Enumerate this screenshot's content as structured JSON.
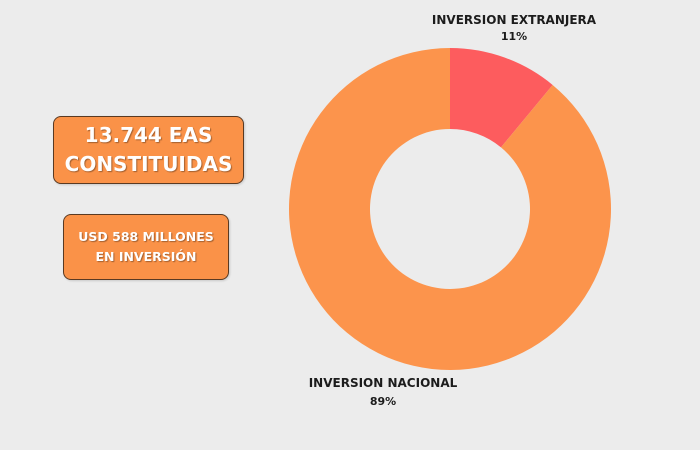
{
  "stats": {
    "companies_line1": "13.744 EAS",
    "companies_line2": "CONSTITUIDAS",
    "investment_line1": "USD 588 MILLONES",
    "investment_line2": "EN INVERSIÓN"
  },
  "colors": {
    "background": "#ececec",
    "box_fill": "#fa9248",
    "box_border": "#5a3a22"
  },
  "chart_data": {
    "type": "pie",
    "style": "donut",
    "categories": [
      "INVERSION EXTRANJERA",
      "INVERSION NACIONAL"
    ],
    "values": [
      11,
      89
    ],
    "value_labels": [
      "11%",
      "89%"
    ],
    "colors": [
      "#fd5c5e",
      "#fc944c"
    ]
  }
}
